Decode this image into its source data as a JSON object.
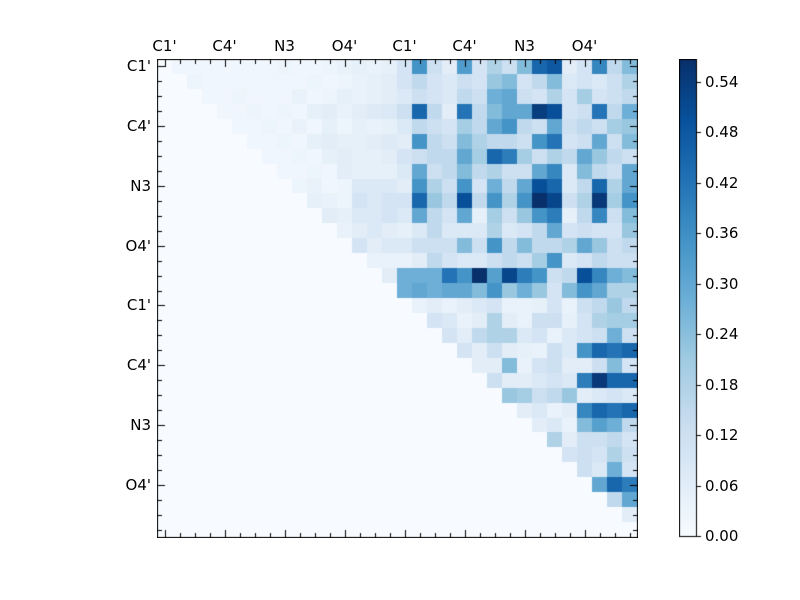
{
  "figure": {
    "background": "#ffffff"
  },
  "chart_data": {
    "type": "heatmap",
    "title": "",
    "xlabel": "",
    "ylabel": "",
    "colormap": "Blues",
    "vmin": 0.0,
    "vmax": 0.567,
    "matrix_size": 32,
    "grid": false,
    "legend_position": "colorbar-right",
    "x_tick_labels": [
      "C1'",
      "C4'",
      "N3",
      "O4'",
      "C1'",
      "C4'",
      "N3",
      "O4'"
    ],
    "y_tick_labels": [
      "C1'",
      "C4'",
      "N3",
      "O4'",
      "C1'",
      "C4'",
      "N3",
      "O4'"
    ],
    "labeled_tick_positions": [
      0,
      4,
      8,
      12,
      16,
      20,
      24,
      28
    ],
    "colorbar_ticks": [
      "0.00",
      "0.06",
      "0.12",
      "0.18",
      "0.24",
      "0.30",
      "0.36",
      "0.42",
      "0.48",
      "0.54"
    ],
    "colorbar_tick_values": [
      0.0,
      0.06,
      0.12,
      0.18,
      0.24,
      0.3,
      0.36,
      0.42,
      0.48,
      0.54
    ],
    "colormap_anchors": {
      "t": [
        0,
        0.125,
        0.25,
        0.375,
        0.5,
        0.625,
        0.75,
        0.875,
        1.0
      ],
      "rgb": [
        [
          247,
          251,
          255
        ],
        [
          222,
          235,
          247
        ],
        [
          198,
          219,
          239
        ],
        [
          158,
          202,
          225
        ],
        [
          107,
          174,
          214
        ],
        [
          66,
          146,
          198
        ],
        [
          33,
          113,
          181
        ],
        [
          8,
          81,
          156
        ],
        [
          8,
          48,
          107
        ]
      ]
    },
    "matrix": [
      [
        0,
        0.02,
        0.02,
        0.02,
        0.02,
        0.02,
        0.02,
        0.02,
        0.03,
        0.02,
        0.02,
        0.03,
        0.04,
        0.05,
        0.04,
        0.05,
        0.1,
        0.35,
        0.12,
        0.06,
        0.33,
        0.1,
        0.18,
        0.12,
        0.25,
        0.45,
        0.48,
        0.06,
        0.1,
        0.38,
        0.15,
        0.25
      ],
      [
        0,
        0,
        0.03,
        0.02,
        0.02,
        0.02,
        0.02,
        0.02,
        0.02,
        0.02,
        0.03,
        0.02,
        0.03,
        0.04,
        0.05,
        0.06,
        0.1,
        0.15,
        0.1,
        0.08,
        0.12,
        0.1,
        0.22,
        0.25,
        0.1,
        0.15,
        0.25,
        0.08,
        0.1,
        0.08,
        0.12,
        0.18
      ],
      [
        0,
        0,
        0,
        0.02,
        0.02,
        0.03,
        0.02,
        0.02,
        0.02,
        0.04,
        0.02,
        0.03,
        0.05,
        0.04,
        0.05,
        0.06,
        0.08,
        0.12,
        0.1,
        0.08,
        0.15,
        0.12,
        0.28,
        0.3,
        0.12,
        0.1,
        0.18,
        0.1,
        0.2,
        0.1,
        0.12,
        0.15
      ],
      [
        0,
        0,
        0,
        0,
        0.02,
        0.02,
        0.03,
        0.02,
        0.03,
        0.02,
        0.05,
        0.06,
        0.04,
        0.06,
        0.07,
        0.08,
        0.12,
        0.45,
        0.15,
        0.06,
        0.42,
        0.15,
        0.25,
        0.3,
        0.3,
        0.54,
        0.5,
        0.1,
        0.12,
        0.42,
        0.15,
        0.28
      ],
      [
        0,
        0,
        0,
        0,
        0,
        0.02,
        0.02,
        0.03,
        0.02,
        0.04,
        0.02,
        0.05,
        0.03,
        0.05,
        0.04,
        0.05,
        0.08,
        0.15,
        0.12,
        0.1,
        0.2,
        0.15,
        0.3,
        0.35,
        0.15,
        0.12,
        0.3,
        0.12,
        0.15,
        0.12,
        0.2,
        0.22
      ],
      [
        0,
        0,
        0,
        0,
        0,
        0,
        0.02,
        0.02,
        0.03,
        0.02,
        0.05,
        0.06,
        0.05,
        0.05,
        0.06,
        0.07,
        0.06,
        0.35,
        0.15,
        0.12,
        0.25,
        0.18,
        0.15,
        0.15,
        0.12,
        0.35,
        0.42,
        0.1,
        0.12,
        0.3,
        0.12,
        0.25
      ],
      [
        0,
        0,
        0,
        0,
        0,
        0,
        0,
        0.02,
        0.02,
        0.03,
        0.02,
        0.05,
        0.06,
        0.05,
        0.05,
        0.06,
        0.1,
        0.12,
        0.15,
        0.15,
        0.3,
        0.2,
        0.45,
        0.4,
        0.2,
        0.12,
        0.18,
        0.15,
        0.3,
        0.22,
        0.15,
        0.12
      ],
      [
        0,
        0,
        0,
        0,
        0,
        0,
        0,
        0,
        0.02,
        0.02,
        0.03,
        0.02,
        0.06,
        0.05,
        0.05,
        0.05,
        0.08,
        0.3,
        0.12,
        0.15,
        0.25,
        0.15,
        0.18,
        0.12,
        0.12,
        0.3,
        0.38,
        0.08,
        0.25,
        0.15,
        0.12,
        0.3
      ],
      [
        0,
        0,
        0,
        0,
        0,
        0,
        0,
        0,
        0,
        0.03,
        0.04,
        0.02,
        0.03,
        0.08,
        0.08,
        0.08,
        0.06,
        0.35,
        0.18,
        0.12,
        0.35,
        0.1,
        0.28,
        0.15,
        0.3,
        0.5,
        0.45,
        0.08,
        0.15,
        0.45,
        0.18,
        0.3
      ],
      [
        0,
        0,
        0,
        0,
        0,
        0,
        0,
        0,
        0,
        0,
        0.05,
        0.04,
        0.03,
        0.1,
        0.08,
        0.1,
        0.1,
        0.45,
        0.22,
        0.15,
        0.5,
        0.15,
        0.35,
        0.18,
        0.35,
        0.57,
        0.52,
        0.12,
        0.18,
        0.55,
        0.2,
        0.35
      ],
      [
        0,
        0,
        0,
        0,
        0,
        0,
        0,
        0,
        0,
        0,
        0,
        0.06,
        0.05,
        0.08,
        0.08,
        0.1,
        0.08,
        0.3,
        0.15,
        0.1,
        0.3,
        0.05,
        0.2,
        0.12,
        0.22,
        0.35,
        0.4,
        0.05,
        0.15,
        0.38,
        0.12,
        0.25
      ],
      [
        0,
        0,
        0,
        0,
        0,
        0,
        0,
        0,
        0,
        0,
        0,
        0,
        0.04,
        0.06,
        0.08,
        0.06,
        0.05,
        0.08,
        0.15,
        0.08,
        0.08,
        0.08,
        0.18,
        0.08,
        0.1,
        0.15,
        0.3,
        0.1,
        0.12,
        0.1,
        0.1,
        0.22
      ],
      [
        0,
        0,
        0,
        0,
        0,
        0,
        0,
        0,
        0,
        0,
        0,
        0,
        0,
        0.1,
        0.06,
        0.08,
        0.08,
        0.12,
        0.12,
        0.12,
        0.25,
        0.12,
        0.35,
        0.15,
        0.25,
        0.15,
        0.15,
        0.18,
        0.3,
        0.22,
        0.12,
        0.15
      ],
      [
        0,
        0,
        0,
        0,
        0,
        0,
        0,
        0,
        0,
        0,
        0,
        0,
        0,
        0,
        0.04,
        0.04,
        0.04,
        0.06,
        0.15,
        0.1,
        0.08,
        0.08,
        0.12,
        0.15,
        0.12,
        0.2,
        0.35,
        0.08,
        0.1,
        0.15,
        0.12,
        0.12
      ],
      [
        0,
        0,
        0,
        0,
        0,
        0,
        0,
        0,
        0,
        0,
        0,
        0,
        0,
        0,
        0,
        0.06,
        0.28,
        0.28,
        0.28,
        0.42,
        0.35,
        0.57,
        0.32,
        0.52,
        0.4,
        0.35,
        0.12,
        0.15,
        0.5,
        0.38,
        0.28,
        0.25
      ],
      [
        0,
        0,
        0,
        0,
        0,
        0,
        0,
        0,
        0,
        0,
        0,
        0,
        0,
        0,
        0,
        0,
        0.28,
        0.3,
        0.28,
        0.3,
        0.3,
        0.25,
        0.35,
        0.22,
        0.28,
        0.22,
        0.1,
        0.25,
        0.35,
        0.3,
        0.18,
        0.18
      ],
      [
        0,
        0,
        0,
        0,
        0,
        0,
        0,
        0,
        0,
        0,
        0,
        0,
        0,
        0,
        0,
        0,
        0,
        0.04,
        0.06,
        0.04,
        0.06,
        0.08,
        0.1,
        0.04,
        0.04,
        0.05,
        0.1,
        0.04,
        0.12,
        0.15,
        0.22,
        0.15
      ],
      [
        0,
        0,
        0,
        0,
        0,
        0,
        0,
        0,
        0,
        0,
        0,
        0,
        0,
        0,
        0,
        0,
        0,
        0,
        0.1,
        0.08,
        0.04,
        0.06,
        0.18,
        0.06,
        0.04,
        0.12,
        0.12,
        0.05,
        0.1,
        0.18,
        0.2,
        0.2
      ],
      [
        0,
        0,
        0,
        0,
        0,
        0,
        0,
        0,
        0,
        0,
        0,
        0,
        0,
        0,
        0,
        0,
        0,
        0,
        0,
        0.1,
        0.06,
        0.15,
        0.18,
        0.18,
        0.08,
        0.1,
        0.04,
        0.08,
        0.1,
        0.12,
        0.28,
        0.12
      ],
      [
        0,
        0,
        0,
        0,
        0,
        0,
        0,
        0,
        0,
        0,
        0,
        0,
        0,
        0,
        0,
        0,
        0,
        0,
        0,
        0,
        0.1,
        0.06,
        0.12,
        0.06,
        0.05,
        0.04,
        0.12,
        0.08,
        0.35,
        0.45,
        0.42,
        0.45
      ],
      [
        0,
        0,
        0,
        0,
        0,
        0,
        0,
        0,
        0,
        0,
        0,
        0,
        0,
        0,
        0,
        0,
        0,
        0,
        0,
        0,
        0,
        0.06,
        0.06,
        0.25,
        0.04,
        0.1,
        0.12,
        0.06,
        0.06,
        0.12,
        0.25,
        0.1
      ],
      [
        0,
        0,
        0,
        0,
        0,
        0,
        0,
        0,
        0,
        0,
        0,
        0,
        0,
        0,
        0,
        0,
        0,
        0,
        0,
        0,
        0,
        0,
        0.12,
        0.06,
        0.06,
        0.08,
        0.1,
        0.08,
        0.4,
        0.55,
        0.45,
        0.45
      ],
      [
        0,
        0,
        0,
        0,
        0,
        0,
        0,
        0,
        0,
        0,
        0,
        0,
        0,
        0,
        0,
        0,
        0,
        0,
        0,
        0,
        0,
        0,
        0,
        0.22,
        0.2,
        0.12,
        0.15,
        0.22,
        0.06,
        0.08,
        0.1,
        0.08
      ],
      [
        0,
        0,
        0,
        0,
        0,
        0,
        0,
        0,
        0,
        0,
        0,
        0,
        0,
        0,
        0,
        0,
        0,
        0,
        0,
        0,
        0,
        0,
        0,
        0,
        0.06,
        0.08,
        0.04,
        0.06,
        0.38,
        0.45,
        0.42,
        0.45
      ],
      [
        0,
        0,
        0,
        0,
        0,
        0,
        0,
        0,
        0,
        0,
        0,
        0,
        0,
        0,
        0,
        0,
        0,
        0,
        0,
        0,
        0,
        0,
        0,
        0,
        0,
        0.06,
        0.08,
        0.04,
        0.25,
        0.32,
        0.28,
        0.15
      ],
      [
        0,
        0,
        0,
        0,
        0,
        0,
        0,
        0,
        0,
        0,
        0,
        0,
        0,
        0,
        0,
        0,
        0,
        0,
        0,
        0,
        0,
        0,
        0,
        0,
        0,
        0,
        0.18,
        0.06,
        0.12,
        0.12,
        0.15,
        0.1
      ],
      [
        0,
        0,
        0,
        0,
        0,
        0,
        0,
        0,
        0,
        0,
        0,
        0,
        0,
        0,
        0,
        0,
        0,
        0,
        0,
        0,
        0,
        0,
        0,
        0,
        0,
        0,
        0,
        0.1,
        0.12,
        0.1,
        0.18,
        0.12
      ],
      [
        0,
        0,
        0,
        0,
        0,
        0,
        0,
        0,
        0,
        0,
        0,
        0,
        0,
        0,
        0,
        0,
        0,
        0,
        0,
        0,
        0,
        0,
        0,
        0,
        0,
        0,
        0,
        0,
        0.12,
        0.08,
        0.28,
        0.1
      ],
      [
        0,
        0,
        0,
        0,
        0,
        0,
        0,
        0,
        0,
        0,
        0,
        0,
        0,
        0,
        0,
        0,
        0,
        0,
        0,
        0,
        0,
        0,
        0,
        0,
        0,
        0,
        0,
        0,
        0,
        0.3,
        0.45,
        0.4
      ],
      [
        0,
        0,
        0,
        0,
        0,
        0,
        0,
        0,
        0,
        0,
        0,
        0,
        0,
        0,
        0,
        0,
        0,
        0,
        0,
        0,
        0,
        0,
        0,
        0,
        0,
        0,
        0,
        0,
        0,
        0,
        0.15,
        0.3
      ],
      [
        0,
        0,
        0,
        0,
        0,
        0,
        0,
        0,
        0,
        0,
        0,
        0,
        0,
        0,
        0,
        0,
        0,
        0,
        0,
        0,
        0,
        0,
        0,
        0,
        0,
        0,
        0,
        0,
        0,
        0,
        0,
        0.06
      ],
      [
        0,
        0,
        0,
        0,
        0,
        0,
        0,
        0,
        0,
        0,
        0,
        0,
        0,
        0,
        0,
        0,
        0,
        0,
        0,
        0,
        0,
        0,
        0,
        0,
        0,
        0,
        0,
        0,
        0,
        0,
        0,
        0
      ]
    ]
  }
}
